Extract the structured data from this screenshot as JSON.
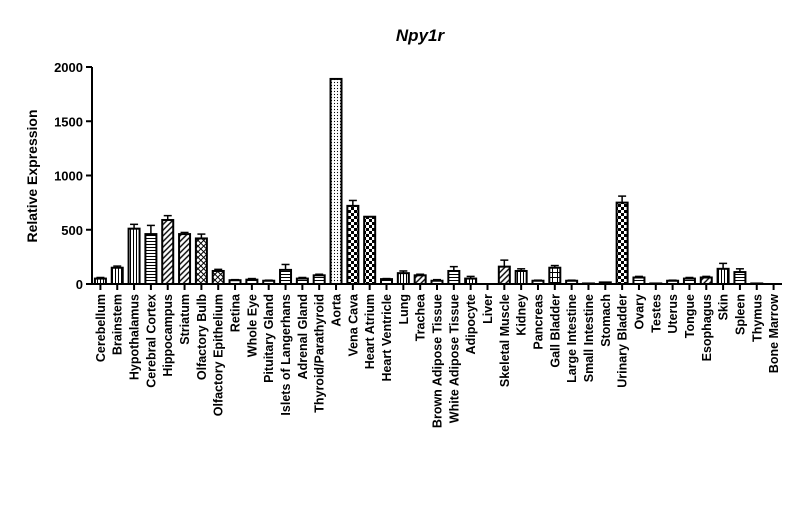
{
  "chart_data": {
    "type": "bar",
    "title": "Npy1r",
    "xlabel": "",
    "ylabel": "Relative Expression",
    "ylim": [
      0,
      2000
    ],
    "yticks": [
      "0",
      "500",
      "1000",
      "1500",
      "2000"
    ],
    "categories": [
      "Cerebellum",
      "Brainstem",
      "Hypothalamus",
      "Cerebral Cortex",
      "Hippocampus",
      "Striatum",
      "Olfactory Bulb",
      "Olfactory Epithelium",
      "Retina",
      "Whole Eye",
      "Pituitary Gland",
      "Islets of Langerhans",
      "Adrenal Gland",
      "Thyroid/Parathyroid",
      "Aorta",
      "Vena Cava",
      "Heart Atrium",
      "Heart Ventricle",
      "Lung",
      "Trachea",
      "Brown Adipose Tissue",
      "White Adipose Tissue",
      "Adipocyte",
      "Liver",
      "Skeletal Muscle",
      "Kidney",
      "Pancreas",
      "Gall Bladder",
      "Large Intestine",
      "Small Intestine",
      "Stomach",
      "Urinary Bladder",
      "Ovary",
      "Testes",
      "Uterus",
      "Tongue",
      "Esophagus",
      "Skin",
      "Spleen",
      "Thymus",
      "Bone Marrow"
    ],
    "values": [
      50,
      150,
      510,
      460,
      590,
      460,
      420,
      120,
      35,
      40,
      30,
      130,
      50,
      80,
      1890,
      720,
      620,
      45,
      100,
      80,
      30,
      120,
      50,
      0,
      160,
      120,
      30,
      150,
      30,
      5,
      15,
      750,
      60,
      5,
      30,
      50,
      60,
      140,
      110,
      5,
      0
    ],
    "errors": [
      10,
      15,
      40,
      80,
      40,
      15,
      40,
      15,
      5,
      10,
      5,
      50,
      10,
      10,
      0,
      50,
      0,
      5,
      20,
      10,
      10,
      40,
      20,
      0,
      60,
      20,
      5,
      20,
      5,
      0,
      0,
      60,
      10,
      0,
      5,
      10,
      10,
      50,
      30,
      0,
      0
    ],
    "patterns": [
      "vlines",
      "vlines",
      "vlines",
      "hlines",
      "diag",
      "diag",
      "hatch",
      "hatch",
      "hlines",
      "hlines",
      "hlines",
      "hlines",
      "hlines",
      "hlines",
      "dots",
      "checker",
      "checker",
      "hlines",
      "vlines",
      "diag",
      "hlines",
      "hlines",
      "vlines",
      "hlines",
      "diag",
      "vlines",
      "hlines",
      "grid",
      "hlines",
      "hlines",
      "hlines",
      "checker",
      "hlines",
      "hlines",
      "hlines",
      "hlines",
      "diag",
      "vlines",
      "hlines",
      "hlines",
      "hlines"
    ],
    "grid": false,
    "legend": "none"
  }
}
